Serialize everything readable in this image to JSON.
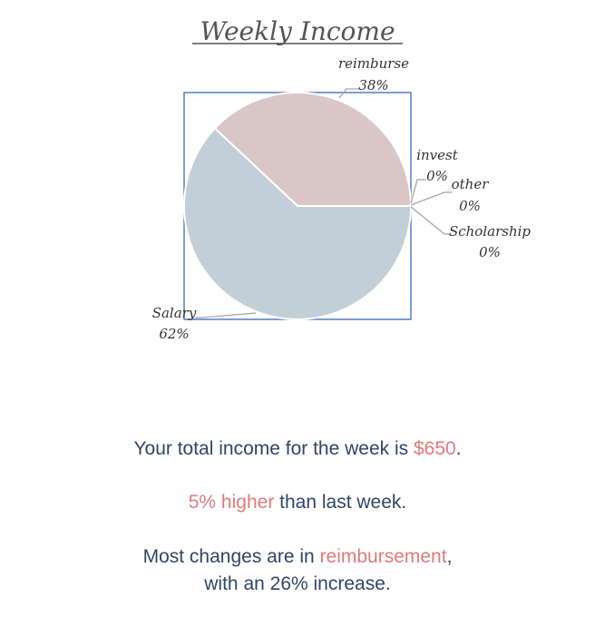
{
  "chart_data": {
    "type": "pie",
    "title": "Weekly Income",
    "slices": [
      {
        "label": "reimburse",
        "value": 38,
        "value_label": "38%",
        "color": "#d9c7c7"
      },
      {
        "label": "invest",
        "value": 0,
        "value_label": "0%",
        "color": "#c9d3dc"
      },
      {
        "label": "other",
        "value": 0,
        "value_label": "0%",
        "color": "#c9d3dc"
      },
      {
        "label": "Scholarship",
        "value": 0,
        "value_label": "0%",
        "color": "#c9d3dc"
      },
      {
        "label": "Salary",
        "value": 62,
        "value_label": "62%",
        "color": "#c3cfd8"
      }
    ],
    "legend": "none"
  },
  "summary": {
    "line1_pre": "Your total income for the week is ",
    "line1_amount": "$650",
    "line1_post": ".",
    "line2_highlight": "5% higher",
    "line2_post": " than last week.",
    "line3_pre": "Most changes are in ",
    "line3_highlight": "reimbursement",
    "line3_post": ",",
    "line4": "with an 26% increase."
  },
  "colors": {
    "text": "#2f4666",
    "highlight": "#e07a7a",
    "frame": "#4a72c4"
  }
}
